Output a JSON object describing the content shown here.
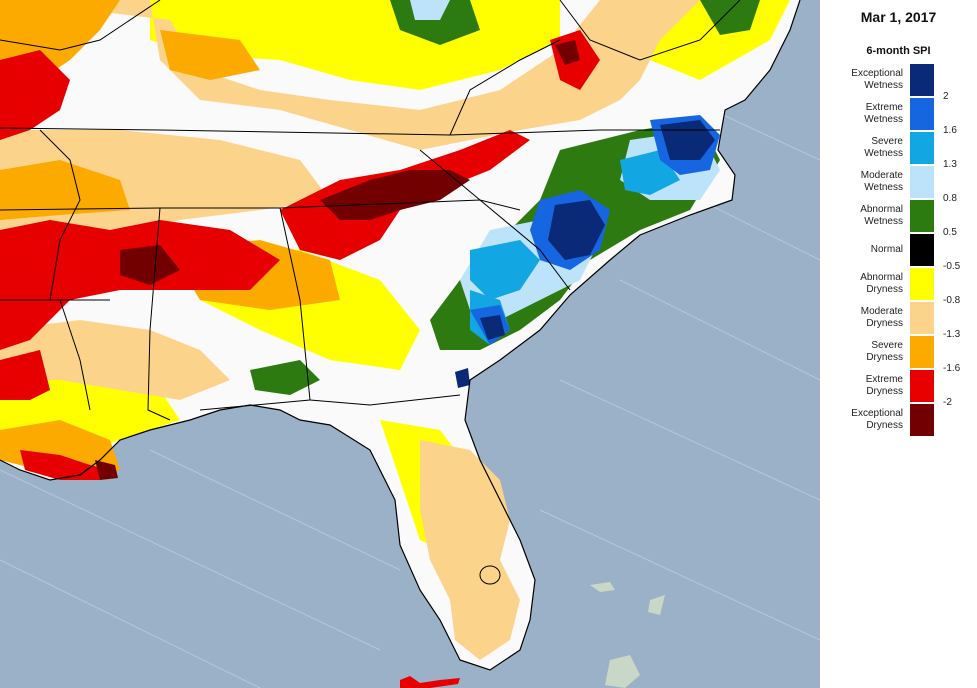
{
  "legend": {
    "date": "Mar 1, 2017",
    "title": "6-month SPI",
    "classes": [
      {
        "line1": "Exceptional",
        "line2": "Wetness",
        "color": "#0a2a78"
      },
      {
        "line1": "Extreme",
        "line2": "Wetness",
        "color": "#1566e0"
      },
      {
        "line1": "Severe",
        "line2": "Wetness",
        "color": "#12a6e3"
      },
      {
        "line1": "Moderate",
        "line2": "Wetness",
        "color": "#bde3fa"
      },
      {
        "line1": "Abnormal",
        "line2": "Wetness",
        "color": "#2d7a10"
      },
      {
        "line1": "Normal",
        "line2": "",
        "color": "#000000"
      },
      {
        "line1": "Abnormal",
        "line2": "Dryness",
        "color": "#ffff00"
      },
      {
        "line1": "Moderate",
        "line2": "Dryness",
        "color": "#fcd38b"
      },
      {
        "line1": "Severe",
        "line2": "Dryness",
        "color": "#fdaa00"
      },
      {
        "line1": "Extreme",
        "line2": "Dryness",
        "color": "#e60000"
      },
      {
        "line1": "Exceptional",
        "line2": "Dryness",
        "color": "#730000"
      }
    ],
    "breaks": [
      "2",
      "1.6",
      "1.3",
      "0.8",
      "0.5",
      "-0.5",
      "-0.8",
      "-1.3",
      "-1.6",
      "-2"
    ]
  },
  "map": {
    "ocean_color": "#9bb1c7",
    "land_color": "#fafafa"
  }
}
